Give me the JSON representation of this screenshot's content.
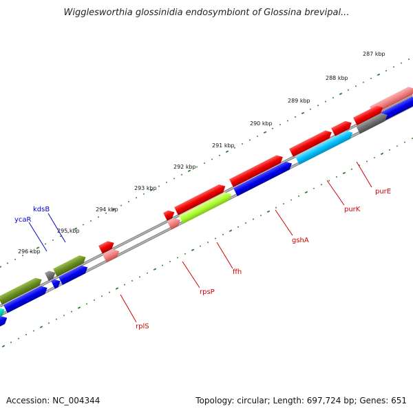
{
  "title": "Wigglesworthia glossinidia endosymbiont of Glossina brevipal...",
  "footer": {
    "accession": "Accession: NC_004344",
    "topology": "Topology: circular; Length: 697,724 bp; Genes: 651"
  },
  "colors": {
    "backbone": "#8c8c8c",
    "tick": "#2a7a2a",
    "red": "#ee0000",
    "pink": "#ee8080",
    "blue": "#0000ee",
    "olive": "#6b8e23",
    "lime": "#adff2f",
    "sky": "#00bfff",
    "gray": "#707070",
    "teal": "#00e0c0"
  },
  "kbp_labels": [
    "287 kbp",
    "288 kbp",
    "289 kbp",
    "290 kbp",
    "291 kbp",
    "292 kbp",
    "293 kbp",
    "294 kbp",
    "295 kbp",
    "296 kbp"
  ],
  "gene_labels": [
    "purE",
    "purK",
    "gshA",
    "ffh",
    "rpsP",
    "rplS",
    "kdsB",
    "ycaR"
  ]
}
